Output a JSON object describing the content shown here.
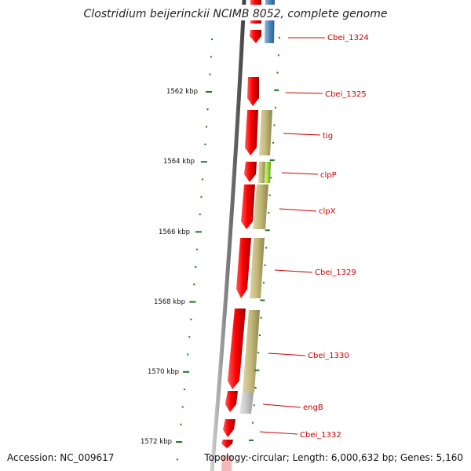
{
  "title": "Clostridium beijerinckii NCIMB 8052, complete genome",
  "accession_text": "Accession: NC_009617",
  "topology_text": "Topology: circular; Length: 6,000,632 bp; Genes: 5,160",
  "scale_labels": [
    "1562 kbp",
    "1564 kbp",
    "1566 kbp",
    "1568 kbp",
    "1570 kbp",
    "1572 kbp"
  ],
  "gene_labels": [
    "Cbei_1324",
    "Cbei_1325",
    "tig",
    "clpP",
    "clpX",
    "Cbei_1329",
    "Cbei_1330",
    "engB",
    "Cbei_1332"
  ],
  "colors": {
    "backbone": "#777777",
    "cds_forward": "#e60000",
    "cds_reverse_blue": "#4f87b8",
    "cog_tan": "#c2b878",
    "cog_green": "#9ee03a",
    "cog_gray": "#c8c8c8",
    "tick": "#1a7a1a",
    "label": "#cc0000"
  }
}
